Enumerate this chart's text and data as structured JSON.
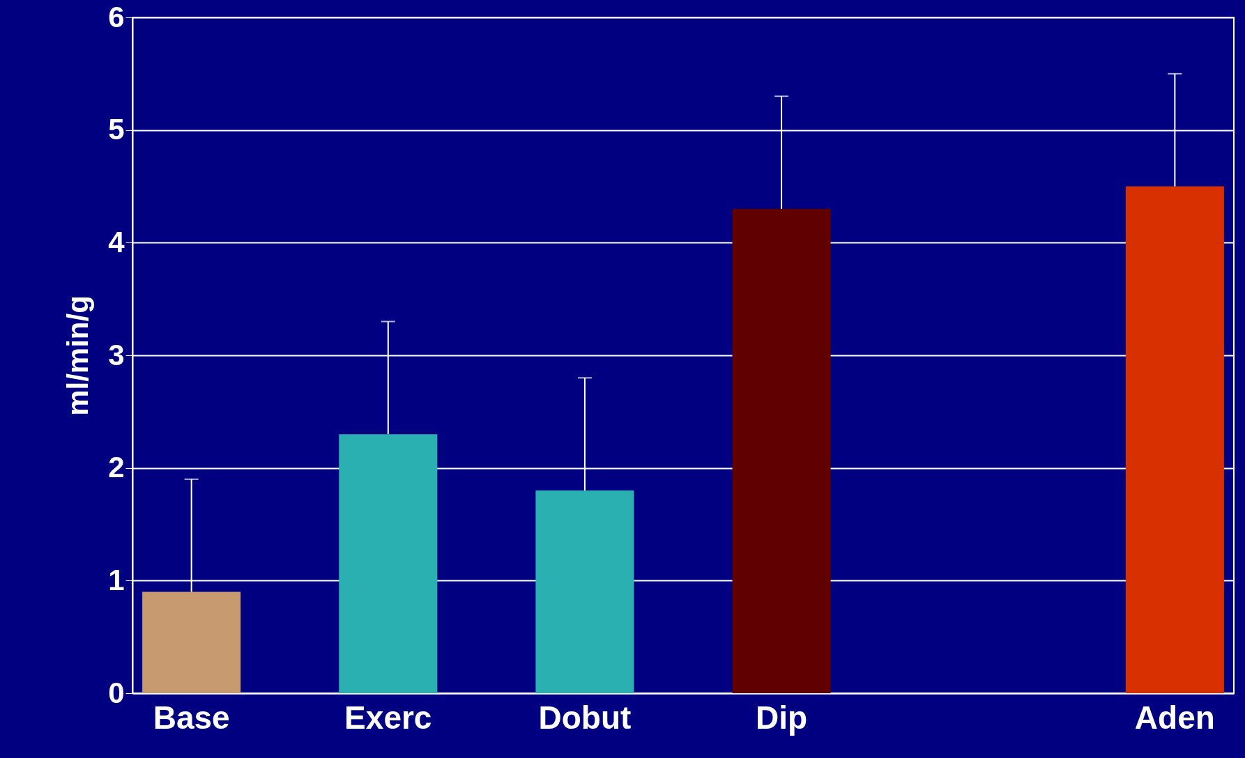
{
  "chart_data": {
    "type": "bar",
    "ylabel": "ml/min/g",
    "categories": [
      "Base",
      "Exerc",
      "Dobut",
      "Dip",
      null,
      "Aden"
    ],
    "values": [
      0.9,
      2.3,
      1.8,
      4.3,
      null,
      4.5
    ],
    "colors": [
      "#c89a70",
      "#2ab0b0",
      "#2ab0b0",
      "#600000",
      null,
      "#d83000"
    ],
    "errors": [
      [
        0.9,
        1.9
      ],
      [
        2.3,
        3.3
      ],
      [
        1.8,
        2.8
      ],
      [
        4.3,
        5.3
      ],
      null,
      [
        4.5,
        5.5
      ]
    ],
    "ylim": [
      0,
      6
    ],
    "yticks": [
      0,
      1,
      2,
      3,
      4,
      5,
      6
    ],
    "grid": "y"
  }
}
